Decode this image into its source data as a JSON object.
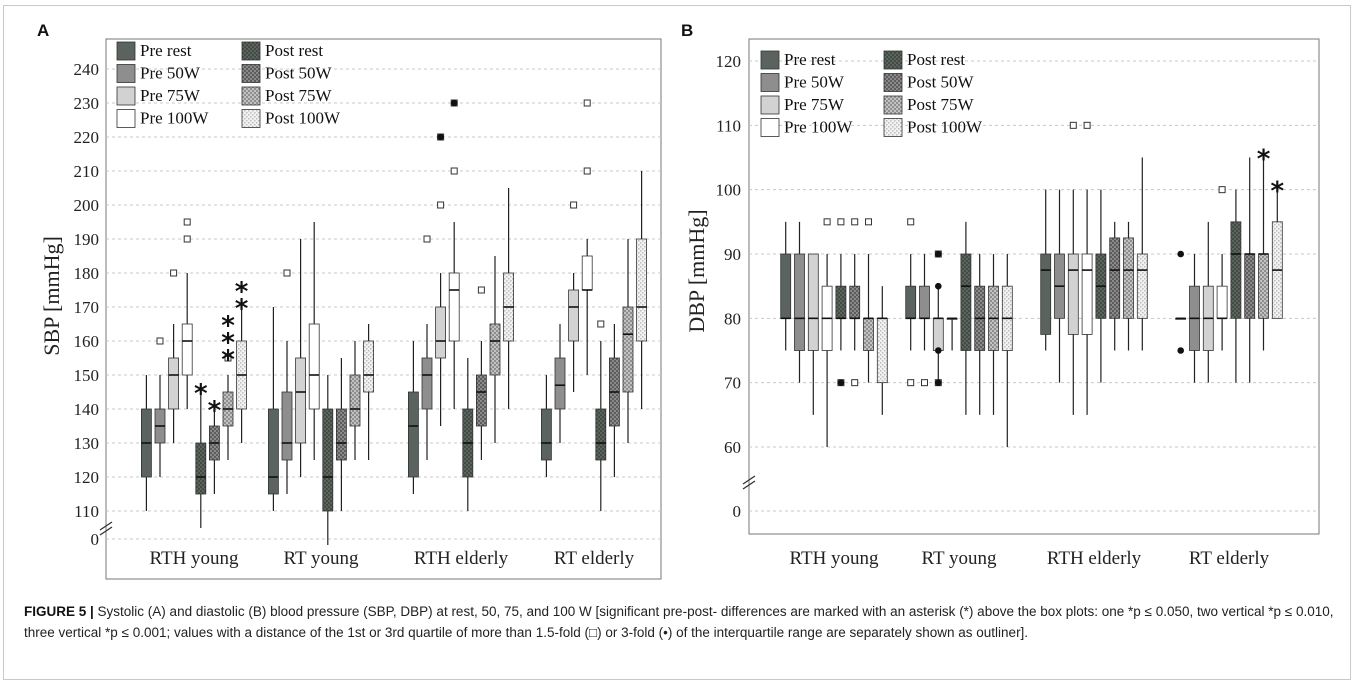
{
  "caption": {
    "lead": "FIGURE 5 |",
    "text": " Systolic (A) and diastolic (B) blood pressure (SBP, DBP) at rest, 50, 75, and 100 W [significant pre-post- differences are marked with an asterisk (*) above the box plots: one *p ≤ 0.050, two vertical *p ≤ 0.010, three vertical *p ≤ 0.001; values with a distance of the 1st or 3rd quartile of more than 1.5-fold (□) or 3-fold (•) of the interquartile range are separately shown as outliner]."
  },
  "legend": {
    "labels": [
      "Pre rest",
      "Post rest",
      "Pre 50W",
      "Post 50W",
      "Pre 75W",
      "Post 75W",
      "Pre 100W",
      "Post 100W"
    ]
  },
  "styles": {
    "pre_rest": "#5a635d",
    "pre_50": "#8e8e8e",
    "pre_75": "#d2d2d2",
    "pre_100": "#ffffff",
    "post_rest": "#4e5750",
    "post_50": "#7a7a7a",
    "post_75": "#a9a9a9",
    "post_100": "#e2e2e2"
  },
  "chart_data": [
    {
      "panel": "A",
      "type": "boxplot",
      "ylabel": "SBP [mmHg]",
      "yticks": [
        "0",
        "110",
        "120",
        "130",
        "140",
        "150",
        "160",
        "170",
        "180",
        "190",
        "200",
        "210",
        "220",
        "230",
        "240"
      ],
      "ylim": [
        105,
        240
      ],
      "axis_break": true,
      "categories": [
        "RTH young",
        "RT young",
        "RTH elderly",
        "RT elderly"
      ],
      "series": [
        "Pre rest",
        "Pre 50W",
        "Pre 75W",
        "Pre 100W",
        "Post rest",
        "Post 50W",
        "Post 75W",
        "Post 100W"
      ],
      "boxes": [
        [
          {
            "lo": 110,
            "q1": 120,
            "med": 130,
            "q3": 140,
            "hi": 150,
            "out": []
          },
          {
            "lo": 120,
            "q1": 130,
            "med": 135,
            "q3": 140,
            "hi": 150,
            "out": [
              160
            ]
          },
          {
            "lo": 130,
            "q1": 140,
            "med": 150,
            "q3": 155,
            "hi": 165,
            "out": [
              180
            ]
          },
          {
            "lo": 140,
            "q1": 150,
            "med": 160,
            "q3": 165,
            "hi": 180,
            "out": [
              190,
              195
            ]
          },
          {
            "lo": 105,
            "q1": 115,
            "med": 120,
            "q3": 130,
            "hi": 145,
            "out": [],
            "star": 1
          },
          {
            "lo": 115,
            "q1": 125,
            "med": 130,
            "q3": 135,
            "hi": 140,
            "out": [],
            "star": 1
          },
          {
            "lo": 125,
            "q1": 135,
            "med": 140,
            "q3": 145,
            "hi": 150,
            "out": [
              155
            ],
            "star": 3
          },
          {
            "lo": 130,
            "q1": 140,
            "med": 150,
            "q3": 160,
            "hi": 170,
            "out": [],
            "star": 2
          }
        ],
        [
          {
            "lo": 110,
            "q1": 115,
            "med": 120,
            "q3": 140,
            "hi": 170,
            "out": []
          },
          {
            "lo": 115,
            "q1": 125,
            "med": 130,
            "q3": 145,
            "hi": 160,
            "out": [
              180
            ]
          },
          {
            "lo": 120,
            "q1": 130,
            "med": 145,
            "q3": 155,
            "hi": 190,
            "out": []
          },
          {
            "lo": 125,
            "q1": 140,
            "med": 150,
            "q3": 165,
            "hi": 195,
            "out": []
          },
          {
            "lo": 100,
            "q1": 110,
            "med": 120,
            "q3": 140,
            "hi": 150,
            "out": []
          },
          {
            "lo": 110,
            "q1": 125,
            "med": 130,
            "q3": 140,
            "hi": 155,
            "out": []
          },
          {
            "lo": 125,
            "q1": 135,
            "med": 140,
            "q3": 150,
            "hi": 160,
            "out": []
          },
          {
            "lo": 125,
            "q1": 145,
            "med": 150,
            "q3": 160,
            "hi": 165,
            "out": []
          }
        ],
        [
          {
            "lo": 115,
            "q1": 120,
            "med": 135,
            "q3": 145,
            "hi": 160,
            "out": []
          },
          {
            "lo": 125,
            "q1": 140,
            "med": 150,
            "q3": 155,
            "hi": 165,
            "out": [
              190
            ]
          },
          {
            "lo": 135,
            "q1": 155,
            "med": 160,
            "q3": 170,
            "hi": 180,
            "out": [
              200,
              220
            ]
          },
          {
            "lo": 140,
            "q1": 160,
            "med": 175,
            "q3": 180,
            "hi": 195,
            "out": [
              210,
              230
            ]
          },
          {
            "lo": 110,
            "q1": 120,
            "med": 130,
            "q3": 140,
            "hi": 155,
            "out": []
          },
          {
            "lo": 125,
            "q1": 135,
            "med": 145,
            "q3": 150,
            "hi": 160,
            "out": [
              175
            ]
          },
          {
            "lo": 130,
            "q1": 150,
            "med": 160,
            "q3": 165,
            "hi": 185,
            "out": []
          },
          {
            "lo": 140,
            "q1": 160,
            "med": 170,
            "q3": 180,
            "hi": 205,
            "out": []
          }
        ],
        [
          {
            "lo": 120,
            "q1": 125,
            "med": 130,
            "q3": 140,
            "hi": 150,
            "out": []
          },
          {
            "lo": 130,
            "q1": 140,
            "med": 147,
            "q3": 155,
            "hi": 165,
            "out": []
          },
          {
            "lo": 145,
            "q1": 160,
            "med": 170,
            "q3": 175,
            "hi": 180,
            "out": [
              200
            ]
          },
          {
            "lo": 150,
            "q1": 175,
            "med": 175,
            "q3": 185,
            "hi": 190,
            "out": [
              210,
              230
            ]
          },
          {
            "lo": 110,
            "q1": 125,
            "med": 130,
            "q3": 140,
            "hi": 160,
            "out": [
              165
            ]
          },
          {
            "lo": 120,
            "q1": 135,
            "med": 145,
            "q3": 155,
            "hi": 165,
            "out": []
          },
          {
            "lo": 130,
            "q1": 145,
            "med": 162,
            "q3": 170,
            "hi": 190,
            "out": []
          },
          {
            "lo": 140,
            "q1": 160,
            "med": 170,
            "q3": 190,
            "hi": 210,
            "out": []
          }
        ]
      ],
      "special_outliers": [
        {
          "cat": 2,
          "series": 2,
          "value": 220
        },
        {
          "cat": 2,
          "series": 3,
          "value": 230
        }
      ]
    },
    {
      "panel": "B",
      "type": "boxplot",
      "ylabel": "DBP [mmHg]",
      "yticks": [
        "0",
        "60",
        "70",
        "80",
        "90",
        "100",
        "110",
        "120"
      ],
      "ylim": [
        55,
        123
      ],
      "axis_break": true,
      "categories": [
        "RTH young",
        "RT young",
        "RTH elderly",
        "RT elderly"
      ],
      "series": [
        "Pre rest",
        "Pre 50W",
        "Pre 75W",
        "Pre 100W",
        "Post rest",
        "Post 50W",
        "Post 75W",
        "Post 100W"
      ],
      "boxes": [
        [
          {
            "lo": 75,
            "q1": 80,
            "med": 80,
            "q3": 90,
            "hi": 95,
            "out": []
          },
          {
            "lo": 70,
            "q1": 75,
            "med": 80,
            "q3": 90,
            "hi": 95,
            "out": []
          },
          {
            "lo": 65,
            "q1": 75,
            "med": 80,
            "q3": 90,
            "hi": 90,
            "out": []
          },
          {
            "lo": 60,
            "q1": 75,
            "med": 80,
            "q3": 85,
            "hi": 90,
            "out": [
              95
            ]
          },
          {
            "lo": 75,
            "q1": 80,
            "med": 80,
            "q3": 85,
            "hi": 90,
            "out": [
              70,
              95
            ]
          },
          {
            "lo": 75,
            "q1": 80,
            "med": 80,
            "q3": 85,
            "hi": 90,
            "out": [
              70,
              95
            ]
          },
          {
            "lo": 70,
            "q1": 75,
            "med": 80,
            "q3": 80,
            "hi": 90,
            "out": [
              95
            ]
          },
          {
            "lo": 65,
            "q1": 70,
            "med": 80,
            "q3": 80,
            "hi": 85,
            "out": []
          }
        ],
        [
          {
            "lo": 75,
            "q1": 80,
            "med": 80,
            "q3": 85,
            "hi": 90,
            "out": [
              70,
              95
            ]
          },
          {
            "lo": 75,
            "q1": 80,
            "med": 80,
            "q3": 85,
            "hi": 90,
            "out": [
              70
            ]
          },
          {
            "lo": 70,
            "q1": 75,
            "med": 80,
            "q3": 80,
            "hi": 85,
            "out": [
              70,
              90
            ]
          },
          {
            "lo": 75,
            "q1": 80,
            "med": 80,
            "q3": 80,
            "hi": 80,
            "out": []
          },
          {
            "lo": 65,
            "q1": 75,
            "med": 85,
            "q3": 90,
            "hi": 95,
            "out": []
          },
          {
            "lo": 65,
            "q1": 75,
            "med": 80,
            "q3": 85,
            "hi": 90,
            "out": []
          },
          {
            "lo": 65,
            "q1": 75,
            "med": 80,
            "q3": 85,
            "hi": 90,
            "out": []
          },
          {
            "lo": 60,
            "q1": 75,
            "med": 80,
            "q3": 85,
            "hi": 90,
            "out": []
          }
        ],
        [
          {
            "lo": 75,
            "q1": 77.5,
            "med": 87.5,
            "q3": 90,
            "hi": 100,
            "out": []
          },
          {
            "lo": 70,
            "q1": 80,
            "med": 85,
            "q3": 90,
            "hi": 100,
            "out": []
          },
          {
            "lo": 65,
            "q1": 77.5,
            "med": 87.5,
            "q3": 90,
            "hi": 100,
            "out": [
              110
            ]
          },
          {
            "lo": 65,
            "q1": 77.5,
            "med": 87.5,
            "q3": 90,
            "hi": 100,
            "out": [
              110
            ]
          },
          {
            "lo": 70,
            "q1": 80,
            "med": 85,
            "q3": 90,
            "hi": 100,
            "out": []
          },
          {
            "lo": 75,
            "q1": 80,
            "med": 87.5,
            "q3": 92.5,
            "hi": 95,
            "out": []
          },
          {
            "lo": 75,
            "q1": 80,
            "med": 87.5,
            "q3": 92.5,
            "hi": 95,
            "out": []
          },
          {
            "lo": 75,
            "q1": 80,
            "med": 87.5,
            "q3": 90,
            "hi": 105,
            "out": []
          }
        ],
        [
          {
            "lo": 80,
            "q1": 80,
            "med": 80,
            "q3": 80,
            "hi": 80,
            "out": []
          },
          {
            "lo": 70,
            "q1": 75,
            "med": 80,
            "q3": 85,
            "hi": 90,
            "out": []
          },
          {
            "lo": 70,
            "q1": 75,
            "med": 80,
            "q3": 85,
            "hi": 95,
            "out": []
          },
          {
            "lo": 75,
            "q1": 80,
            "med": 80,
            "q3": 85,
            "hi": 90,
            "out": [
              100
            ]
          },
          {
            "lo": 70,
            "q1": 80,
            "med": 90,
            "q3": 95,
            "hi": 100,
            "out": []
          },
          {
            "lo": 70,
            "q1": 80,
            "med": 90,
            "q3": 90,
            "hi": 105,
            "out": []
          },
          {
            "lo": 75,
            "q1": 80,
            "med": 90,
            "q3": 90,
            "hi": 105,
            "out": [],
            "star": 1
          },
          {
            "lo": 80,
            "q1": 80,
            "med": 87.5,
            "q3": 95,
            "hi": 100,
            "out": [],
            "star": 1
          }
        ]
      ],
      "special_outliers": [
        {
          "cat": 0,
          "series": 4,
          "value": 70
        },
        {
          "cat": 1,
          "series": 2,
          "value": 90
        },
        {
          "cat": 1,
          "series": 2,
          "value": 85
        },
        {
          "cat": 1,
          "series": 2,
          "value": 75
        },
        {
          "cat": 1,
          "series": 2,
          "value": 70
        },
        {
          "cat": 3,
          "series": 0,
          "value": 90
        },
        {
          "cat": 3,
          "series": 0,
          "value": 75
        }
      ]
    }
  ]
}
